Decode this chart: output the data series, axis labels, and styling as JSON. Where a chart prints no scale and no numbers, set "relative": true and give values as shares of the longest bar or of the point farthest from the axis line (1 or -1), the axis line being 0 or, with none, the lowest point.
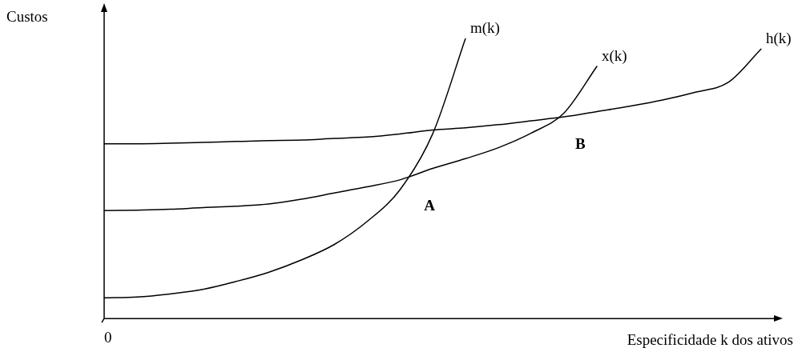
{
  "chart_data": {
    "type": "line",
    "relative": true,
    "ylabel": "Custos",
    "xlabel": "Especificidade k dos ativos",
    "categories": [
      null,
      null,
      null,
      null,
      null,
      null,
      null,
      null,
      null,
      null,
      null,
      null,
      null,
      null,
      null,
      null,
      null,
      null,
      null,
      null,
      null
    ],
    "series": [
      {
        "name": "m(k)",
        "color": "#000000",
        "values": [
          0.074,
          0.077,
          0.088,
          0.104,
          0.132,
          0.165,
          0.209,
          0.264,
          0.346,
          0.459,
          0.659,
          1,
          null,
          null,
          null,
          null,
          null,
          null,
          null,
          null,
          null
        ]
      },
      {
        "name": "x(k)",
        "color": "#000000",
        "values": [
          0.385,
          0.387,
          0.39,
          0.396,
          0.401,
          0.409,
          0.426,
          0.448,
          0.47,
          0.495,
          0.536,
          0.571,
          0.61,
          0.662,
          0.734,
          0.9,
          null,
          null,
          null,
          null,
          null
        ]
      },
      {
        "name": "h(k)",
        "color": "#000000",
        "values": [
          0.624,
          0.624,
          0.626,
          0.629,
          0.632,
          0.635,
          0.637,
          0.643,
          0.648,
          0.659,
          0.673,
          0.681,
          0.692,
          0.706,
          0.72,
          0.739,
          0.758,
          0.78,
          0.808,
          0.843,
          0.962
        ]
      }
    ],
    "annotations": [
      "0",
      "A",
      "B"
    ],
    "marker": "none",
    "line_style": "solid",
    "legend": false
  }
}
